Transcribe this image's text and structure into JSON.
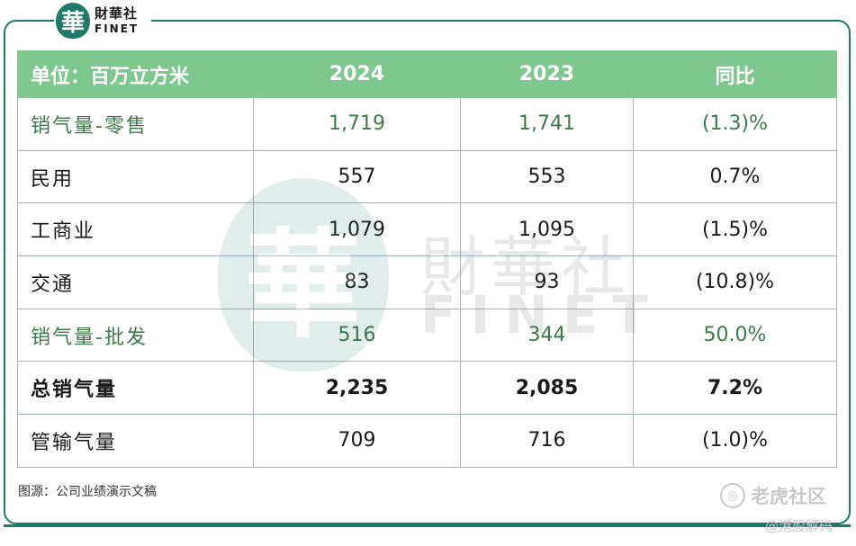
{
  "brand": {
    "seal_char": "華",
    "name_cn": "財華社",
    "name_en": "FINET"
  },
  "table": {
    "headers": [
      "单位：百万立方米",
      "2024",
      "2023",
      "同比"
    ],
    "rows": [
      {
        "label": "销气量-零售",
        "v2024": "1,719",
        "v2023": "1,741",
        "yoy": "(1.3)%"
      },
      {
        "label": "民用",
        "v2024": "557",
        "v2023": "553",
        "yoy": "0.7%"
      },
      {
        "label": "工商业",
        "v2024": "1,079",
        "v2023": "1,095",
        "yoy": "(1.5)%"
      },
      {
        "label": "交通",
        "v2024": "83",
        "v2023": "93",
        "yoy": "(10.8)%"
      },
      {
        "label": "销气量-批发",
        "v2024": "516",
        "v2023": "344",
        "yoy": "50.0%"
      },
      {
        "label": "总销气量",
        "v2024": "2,235",
        "v2023": "2,085",
        "yoy": "7.2%"
      },
      {
        "label": "管输气量",
        "v2024": "709",
        "v2023": "716",
        "yoy": "(1.0)%"
      }
    ]
  },
  "source": "图源：公司业绩演示文稿",
  "watermark_site": "老虎社区",
  "watermark_user": "@港股解码",
  "colors": {
    "header_bg": "#7ec88f",
    "accent": "#1f7a68",
    "green_text": "#3c7a4a"
  }
}
